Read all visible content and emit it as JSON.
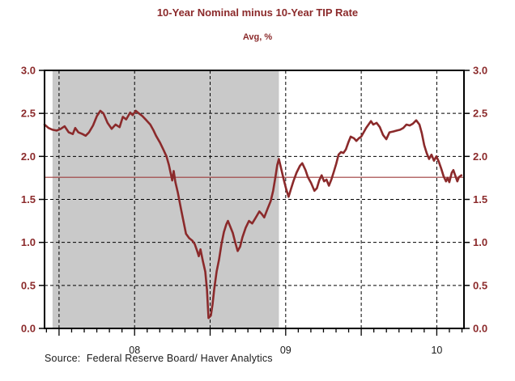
{
  "header": {
    "title": "10-Year Nominal minus 10-Year TIP Rate",
    "subtitle": "Avg, %"
  },
  "footer": {
    "source": "Source:  Federal Reserve Board/ Haver Analytics"
  },
  "chart_data": {
    "type": "line",
    "title": "10-Year Nominal minus 10-Year TIP Rate",
    "subtitle": "Avg, %",
    "grid": "dashed-black",
    "legend": "none",
    "x_axis": {
      "min": 2007.904,
      "max": 2010.68,
      "major_gridlines": [
        2008.0,
        2008.5,
        2009.0,
        2009.5,
        2010.0,
        2010.5
      ],
      "minor_tick_interval_years": 0.08333,
      "tick_labels": [
        {
          "x": 2008.5,
          "label": "08"
        },
        {
          "x": 2009.5,
          "label": "09"
        },
        {
          "x": 2010.5,
          "label": "10"
        }
      ]
    },
    "y_axis": {
      "min": 0.0,
      "max": 3.0,
      "gridlines": [
        0.5,
        1.0,
        1.5,
        2.0,
        2.5
      ],
      "ticks": [
        {
          "v": 3.0,
          "label": "3.0"
        },
        {
          "v": 2.5,
          "label": "2.5"
        },
        {
          "v": 2.0,
          "label": "2.0"
        },
        {
          "v": 1.5,
          "label": "1.5"
        },
        {
          "v": 1.0,
          "label": "1.0"
        },
        {
          "v": 0.5,
          "label": "0.5"
        },
        {
          "v": 0.0,
          "label": "0.0"
        }
      ],
      "label_color": "#8b2a2b",
      "labels_on_both_sides": true
    },
    "recession_band": {
      "start": 2007.957,
      "end": 2009.455,
      "color": "#c9c9c9"
    },
    "reference_line": {
      "value": 1.757,
      "color": "#9e3a3a"
    },
    "series": [
      {
        "name": "10-Year Nominal minus 10-Year TIP Rate (Avg, %)",
        "color": "#8b2a2b",
        "points": [
          [
            2007.904,
            2.37
          ],
          [
            2007.93,
            2.33
          ],
          [
            2007.957,
            2.31
          ],
          [
            2007.984,
            2.3
          ],
          [
            2008.011,
            2.32
          ],
          [
            2008.037,
            2.35
          ],
          [
            2008.064,
            2.28
          ],
          [
            2008.091,
            2.26
          ],
          [
            2008.107,
            2.33
          ],
          [
            2008.128,
            2.28
          ],
          [
            2008.155,
            2.26
          ],
          [
            2008.176,
            2.24
          ],
          [
            2008.198,
            2.28
          ],
          [
            2008.225,
            2.36
          ],
          [
            2008.251,
            2.47
          ],
          [
            2008.273,
            2.53
          ],
          [
            2008.294,
            2.5
          ],
          [
            2008.321,
            2.39
          ],
          [
            2008.348,
            2.32
          ],
          [
            2008.374,
            2.37
          ],
          [
            2008.401,
            2.34
          ],
          [
            2008.422,
            2.46
          ],
          [
            2008.444,
            2.43
          ],
          [
            2008.471,
            2.51
          ],
          [
            2008.487,
            2.48
          ],
          [
            2008.508,
            2.53
          ],
          [
            2008.529,
            2.5
          ],
          [
            2008.551,
            2.47
          ],
          [
            2008.578,
            2.42
          ],
          [
            2008.604,
            2.37
          ],
          [
            2008.626,
            2.3
          ],
          [
            2008.642,
            2.24
          ],
          [
            2008.668,
            2.16
          ],
          [
            2008.69,
            2.08
          ],
          [
            2008.711,
            2.0
          ],
          [
            2008.727,
            1.9
          ],
          [
            2008.749,
            1.72
          ],
          [
            2008.759,
            1.83
          ],
          [
            2008.77,
            1.7
          ],
          [
            2008.786,
            1.58
          ],
          [
            2008.807,
            1.39
          ],
          [
            2008.824,
            1.24
          ],
          [
            2008.84,
            1.1
          ],
          [
            2008.861,
            1.05
          ],
          [
            2008.882,
            1.02
          ],
          [
            2008.898,
            0.98
          ],
          [
            2008.914,
            0.9
          ],
          [
            2008.925,
            0.84
          ],
          [
            2008.936,
            0.92
          ],
          [
            2008.952,
            0.78
          ],
          [
            2008.968,
            0.66
          ],
          [
            2008.979,
            0.45
          ],
          [
            2008.989,
            0.12
          ],
          [
            2009.005,
            0.15
          ],
          [
            2009.016,
            0.28
          ],
          [
            2009.027,
            0.46
          ],
          [
            2009.043,
            0.66
          ],
          [
            2009.059,
            0.8
          ],
          [
            2009.075,
            0.98
          ],
          [
            2009.091,
            1.12
          ],
          [
            2009.107,
            1.21
          ],
          [
            2009.118,
            1.25
          ],
          [
            2009.134,
            1.18
          ],
          [
            2009.15,
            1.11
          ],
          [
            2009.166,
            1.0
          ],
          [
            2009.182,
            0.9
          ],
          [
            2009.198,
            0.95
          ],
          [
            2009.214,
            1.06
          ],
          [
            2009.235,
            1.17
          ],
          [
            2009.257,
            1.25
          ],
          [
            2009.278,
            1.22
          ],
          [
            2009.299,
            1.28
          ],
          [
            2009.326,
            1.36
          ],
          [
            2009.342,
            1.33
          ],
          [
            2009.358,
            1.29
          ],
          [
            2009.38,
            1.39
          ],
          [
            2009.401,
            1.48
          ],
          [
            2009.417,
            1.6
          ],
          [
            2009.433,
            1.77
          ],
          [
            2009.444,
            1.9
          ],
          [
            2009.455,
            1.97
          ],
          [
            2009.471,
            1.85
          ],
          [
            2009.487,
            1.73
          ],
          [
            2009.503,
            1.62
          ],
          [
            2009.519,
            1.53
          ],
          [
            2009.535,
            1.62
          ],
          [
            2009.551,
            1.71
          ],
          [
            2009.572,
            1.81
          ],
          [
            2009.594,
            1.89
          ],
          [
            2009.61,
            1.92
          ],
          [
            2009.631,
            1.84
          ],
          [
            2009.647,
            1.76
          ],
          [
            2009.668,
            1.69
          ],
          [
            2009.69,
            1.6
          ],
          [
            2009.706,
            1.63
          ],
          [
            2009.722,
            1.72
          ],
          [
            2009.738,
            1.78
          ],
          [
            2009.754,
            1.71
          ],
          [
            2009.77,
            1.73
          ],
          [
            2009.786,
            1.66
          ],
          [
            2009.802,
            1.73
          ],
          [
            2009.818,
            1.82
          ],
          [
            2009.834,
            1.91
          ],
          [
            2009.85,
            2.02
          ],
          [
            2009.866,
            2.05
          ],
          [
            2009.882,
            2.04
          ],
          [
            2009.898,
            2.08
          ],
          [
            2009.914,
            2.16
          ],
          [
            2009.93,
            2.23
          ],
          [
            2009.952,
            2.21
          ],
          [
            2009.968,
            2.18
          ],
          [
            2009.984,
            2.21
          ],
          [
            2010.0,
            2.23
          ],
          [
            2010.016,
            2.28
          ],
          [
            2010.032,
            2.33
          ],
          [
            2010.048,
            2.37
          ],
          [
            2010.064,
            2.41
          ],
          [
            2010.08,
            2.37
          ],
          [
            2010.102,
            2.39
          ],
          [
            2010.123,
            2.34
          ],
          [
            2010.144,
            2.25
          ],
          [
            2010.166,
            2.2
          ],
          [
            2010.187,
            2.28
          ],
          [
            2010.214,
            2.29
          ],
          [
            2010.235,
            2.3
          ],
          [
            2010.257,
            2.31
          ],
          [
            2010.278,
            2.33
          ],
          [
            2010.299,
            2.37
          ],
          [
            2010.321,
            2.36
          ],
          [
            2010.342,
            2.38
          ],
          [
            2010.364,
            2.42
          ],
          [
            2010.385,
            2.37
          ],
          [
            2010.401,
            2.27
          ],
          [
            2010.417,
            2.13
          ],
          [
            2010.433,
            2.04
          ],
          [
            2010.449,
            1.97
          ],
          [
            2010.465,
            2.02
          ],
          [
            2010.481,
            1.95
          ],
          [
            2010.497,
            2.0
          ],
          [
            2010.513,
            1.94
          ],
          [
            2010.529,
            1.86
          ],
          [
            2010.545,
            1.77
          ],
          [
            2010.561,
            1.71
          ],
          [
            2010.572,
            1.75
          ],
          [
            2010.583,
            1.7
          ],
          [
            2010.599,
            1.81
          ],
          [
            2010.61,
            1.84
          ],
          [
            2010.626,
            1.76
          ],
          [
            2010.636,
            1.71
          ],
          [
            2010.647,
            1.76
          ],
          [
            2010.663,
            1.78
          ]
        ]
      }
    ],
    "frame_color": "#000000",
    "background": "#ffffff"
  }
}
